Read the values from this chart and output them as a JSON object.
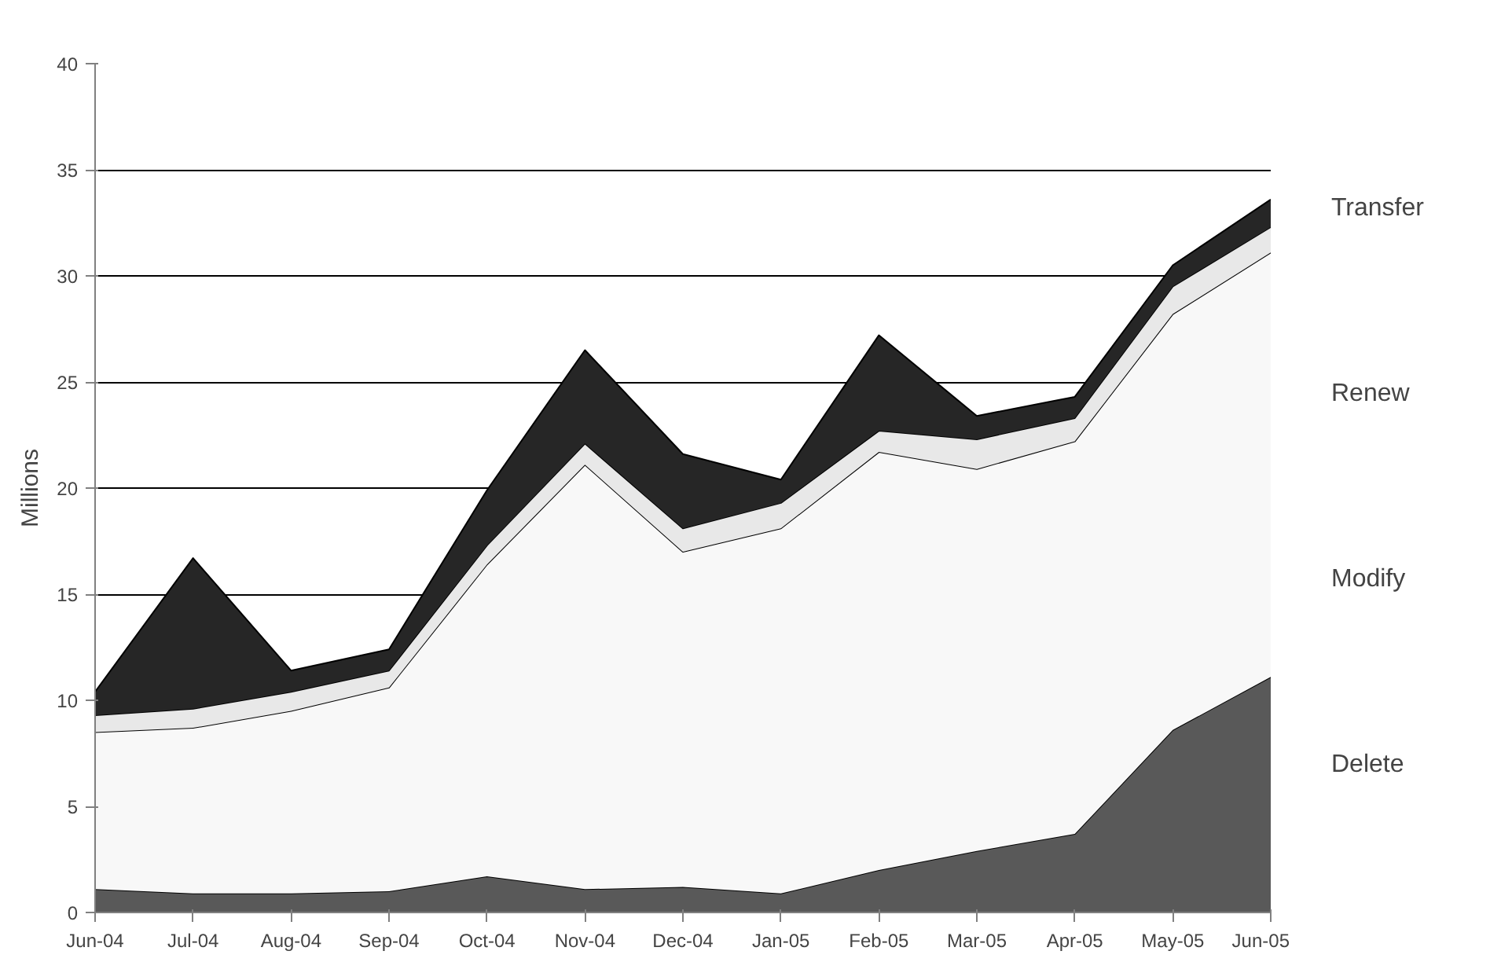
{
  "chart_data": {
    "type": "area",
    "stacked": true,
    "ylabel": "Millions",
    "categories": [
      "Jun-04",
      "Jul-04",
      "Aug-04",
      "Sep-04",
      "Oct-04",
      "Nov-04",
      "Dec-04",
      "Jan-05",
      "Feb-05",
      "Mar-05",
      "Apr-05",
      "May-05",
      "Jun-05"
    ],
    "ylim": [
      0,
      40
    ],
    "yticks": [
      0,
      5,
      10,
      15,
      20,
      25,
      30,
      35,
      40
    ],
    "grid": "y",
    "legend": "right",
    "series": [
      {
        "name": "Delete",
        "color": "#595959",
        "values": [
          1.1,
          0.9,
          0.9,
          1.0,
          1.7,
          1.1,
          1.2,
          0.9,
          2.0,
          2.9,
          3.7,
          8.6,
          11.1
        ]
      },
      {
        "name": "Modify",
        "color": "#f8f8f8",
        "values": [
          7.4,
          7.8,
          8.6,
          9.6,
          14.7,
          20.0,
          15.8,
          17.2,
          19.7,
          18.0,
          18.5,
          19.6,
          20.0
        ]
      },
      {
        "name": "Renew",
        "color": "#e8e8e8",
        "values": [
          0.8,
          0.9,
          0.9,
          0.8,
          0.9,
          1.0,
          1.1,
          1.2,
          1.0,
          1.4,
          1.1,
          1.3,
          1.2
        ]
      },
      {
        "name": "Transfer",
        "color": "#262626",
        "values": [
          1.1,
          7.1,
          1.0,
          1.0,
          2.6,
          4.4,
          3.5,
          1.1,
          4.5,
          1.1,
          1.0,
          1.0,
          1.3
        ]
      }
    ]
  }
}
